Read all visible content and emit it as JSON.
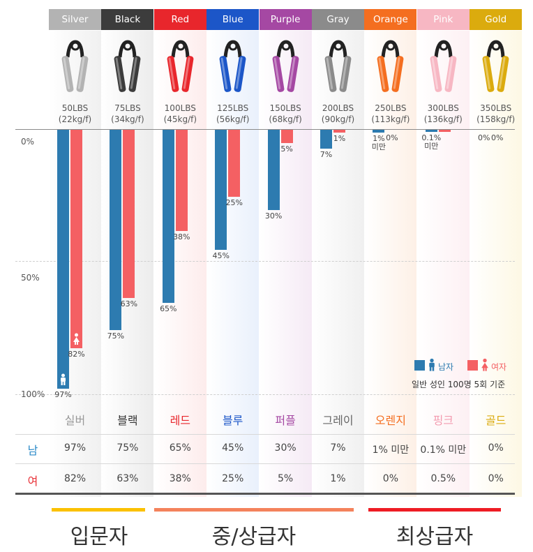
{
  "chart_data": {
    "type": "bar",
    "title": "",
    "ylabel": "",
    "ylim": [
      0,
      100
    ],
    "y_ticks": [
      "0%",
      "50%",
      "100%"
    ],
    "categories": [
      "Silver",
      "Black",
      "Red",
      "Blue",
      "Purple",
      "Gray",
      "Orange",
      "Pink",
      "Gold"
    ],
    "category_names_ko": [
      "실버",
      "블랙",
      "레드",
      "블루",
      "퍼플",
      "그레이",
      "오렌지",
      "핑크",
      "골드"
    ],
    "category_colors": [
      "#b3b3b3",
      "#3c3c3c",
      "#e8262c",
      "#1c56c8",
      "#a548a3",
      "#8b8b8b",
      "#f46e20",
      "#f7b7c3",
      "#dbab0e"
    ],
    "weights": [
      [
        "50LBS",
        "(22kg/f)"
      ],
      [
        "75LBS",
        "(34kg/f)"
      ],
      [
        "100LBS",
        "(45kg/f)"
      ],
      [
        "125LBS",
        "(56kg/f)"
      ],
      [
        "150LBS",
        "(68kg/f)"
      ],
      [
        "200LBS",
        "(90kg/f)"
      ],
      [
        "250LBS",
        "(113kg/f)"
      ],
      [
        "300LBS",
        "(136kg/f)"
      ],
      [
        "350LBS",
        "(158kg/f)"
      ]
    ],
    "series": [
      {
        "name": "남자",
        "color": "#2d7bb0",
        "values": [
          97,
          75,
          65,
          45,
          30,
          7,
          1,
          0.1,
          0
        ],
        "labels": [
          "97%",
          "75%",
          "65%",
          "45%",
          "30%",
          "7%",
          "1%\n미만",
          "0.1%\n미만",
          "0%"
        ]
      },
      {
        "name": "여자",
        "color": "#f46063",
        "values": [
          82,
          63,
          38,
          25,
          5,
          1,
          0,
          0.5,
          0
        ],
        "labels": [
          "82%",
          "63%",
          "38%",
          "25%",
          "5%",
          "1%",
          "0%",
          "",
          "0%"
        ]
      }
    ]
  },
  "legend": {
    "male": "남자",
    "female": "여자",
    "note": "일반 성인 100명 5회 기준"
  },
  "table": {
    "male_label": "남",
    "female_label": "여",
    "male": [
      "97%",
      "75%",
      "65%",
      "45%",
      "30%",
      "7%",
      "1% 미만",
      "0.1% 미만",
      "0%"
    ],
    "female": [
      "82%",
      "63%",
      "38%",
      "25%",
      "5%",
      "1%",
      "0%",
      "0.5%",
      "0%"
    ]
  },
  "tiers": [
    {
      "label": "입문자",
      "color": "#fbc100"
    },
    {
      "label": "중/상급자",
      "color": "#f4825c"
    },
    {
      "label": "최상급자",
      "color": "#ee1c24"
    }
  ],
  "colors": {
    "male_label": "#2b8ac8",
    "female_label": "#e8333a"
  }
}
